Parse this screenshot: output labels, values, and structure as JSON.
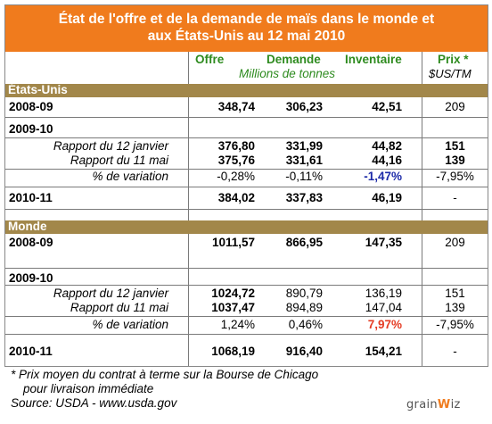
{
  "title": {
    "line1": "État de l'offre et de la demande de maïs dans le monde et",
    "line2": "aux États-Unis au 12 mai 2010"
  },
  "headers": {
    "offre": "Offre",
    "demande": "Demande",
    "inventaire": "Inventaire",
    "prix": "Prix *",
    "unit_millions": "Millions de tonnes",
    "unit_prix": "$US/TM"
  },
  "sections": {
    "usa": {
      "label": "États-Unis",
      "y2008": {
        "label": "2008-09",
        "offre": "348,74",
        "demande": "306,23",
        "inventaire": "42,51",
        "prix": "209"
      },
      "y2009": {
        "label": "2009-10"
      },
      "jan": {
        "label": "Rapport du 12 janvier",
        "offre": "376,80",
        "demande": "331,99",
        "inventaire": "44,82",
        "prix": "151"
      },
      "mai": {
        "label": "Rapport du 11 mai",
        "offre": "375,76",
        "demande": "331,61",
        "inventaire": "44,16",
        "prix": "139"
      },
      "var": {
        "label": "% de variation",
        "offre": "-0,28%",
        "demande": "-0,11%",
        "inventaire": "-1,47%",
        "prix": "-7,95%"
      },
      "y2010": {
        "label": "2010-11",
        "offre": "384,02",
        "demande": "337,83",
        "inventaire": "46,19",
        "prix": "-"
      }
    },
    "monde": {
      "label": "Monde",
      "y2008": {
        "label": "2008-09",
        "offre": "1011,57",
        "demande": "866,95",
        "inventaire": "147,35",
        "prix": "209"
      },
      "y2009": {
        "label": "2009-10"
      },
      "jan": {
        "label": "Rapport du 12 janvier",
        "offre": "1024,72",
        "demande": "890,79",
        "inventaire": "136,19",
        "prix": "151"
      },
      "mai": {
        "label": "Rapport du 11 mai",
        "offre": "1037,47",
        "demande": "894,89",
        "inventaire": "147,04",
        "prix": "139"
      },
      "var": {
        "label": "% de variation",
        "offre": "1,24%",
        "demande": "0,46%",
        "inventaire": "7,97%",
        "prix": "-7,95%"
      },
      "y2010": {
        "label": "2010-11",
        "offre": "1068,19",
        "demande": "916,40",
        "inventaire": "154,21",
        "prix": "-"
      }
    }
  },
  "footnote": {
    "line1": "* Prix moyen du contrat à terme sur la Bourse de Chicago",
    "line2": "pour livraison immédiate",
    "source": "Source: USDA - www.usda.gov"
  },
  "logo": {
    "part1": "grain",
    "part2": "W",
    "part3": "iz"
  },
  "colors": {
    "title_bg": "#f07b1d",
    "band_bg": "#a2874a",
    "header_green": "#2e8b1f",
    "neg_blue": "#1c2aa8",
    "pos_red": "#e53c24"
  }
}
